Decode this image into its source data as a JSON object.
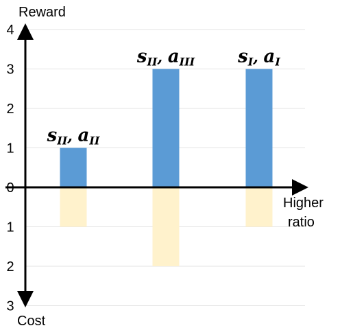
{
  "chart_data": {
    "type": "bar",
    "y_label_top": "Reward",
    "y_label_bottom": "Cost",
    "x_label_lines": [
      "Higher",
      "ratio"
    ],
    "ylim": [
      -3,
      4
    ],
    "y_ticks": [
      {
        "value": 4,
        "label": "4"
      },
      {
        "value": 3,
        "label": "3"
      },
      {
        "value": 2,
        "label": "2"
      },
      {
        "value": 1,
        "label": "1"
      },
      {
        "value": 0,
        "label": "0"
      },
      {
        "value": -1,
        "label": "1"
      },
      {
        "value": -2,
        "label": "2"
      },
      {
        "value": -3,
        "label": "3"
      }
    ],
    "grid": true,
    "series": [
      {
        "key": "reward",
        "color": "#5b9bd5",
        "values": [
          1,
          3,
          3
        ]
      },
      {
        "key": "cost",
        "color": "#fff2cc",
        "values": [
          1,
          2,
          1
        ]
      }
    ],
    "categories": [
      {
        "s": "s",
        "s_sub": "II",
        "a": "a",
        "a_sub": "II"
      },
      {
        "s": "s",
        "s_sub": "II",
        "a": "a",
        "a_sub": "III"
      },
      {
        "s": "s",
        "s_sub": "I",
        "a": "a",
        "a_sub": "I"
      }
    ]
  }
}
